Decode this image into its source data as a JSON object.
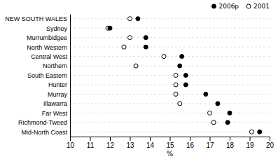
{
  "chart_data": {
    "type": "dot",
    "orientation": "horizontal",
    "categories": [
      "NEW SOUTH WALES",
      "Sydney",
      "Murrumbidgee",
      "North Western",
      "Central West",
      "Northern",
      "South Eastern",
      "Hunter",
      "Murray",
      "Illawarra",
      "Far West",
      "Richmond-Tweed",
      "Mid-North Coast"
    ],
    "series": [
      {
        "name": "2006p",
        "color": "#000000",
        "marker": "circle",
        "values": [
          13.4,
          12.0,
          13.8,
          13.8,
          15.6,
          15.5,
          15.8,
          15.8,
          16.8,
          17.4,
          18.0,
          17.9,
          19.5
        ]
      },
      {
        "name": "2001",
        "color": "#000000",
        "marker": "circle-open",
        "values": [
          13.0,
          11.9,
          13.0,
          12.7,
          14.7,
          13.3,
          15.3,
          15.3,
          15.3,
          15.5,
          17.0,
          17.2,
          19.1
        ]
      }
    ],
    "x_label": "%",
    "xlim": [
      10,
      20
    ],
    "xticks": [
      10,
      11,
      12,
      13,
      14,
      15,
      16,
      17,
      18,
      19,
      20
    ],
    "grid": true,
    "legend": "upper right"
  }
}
